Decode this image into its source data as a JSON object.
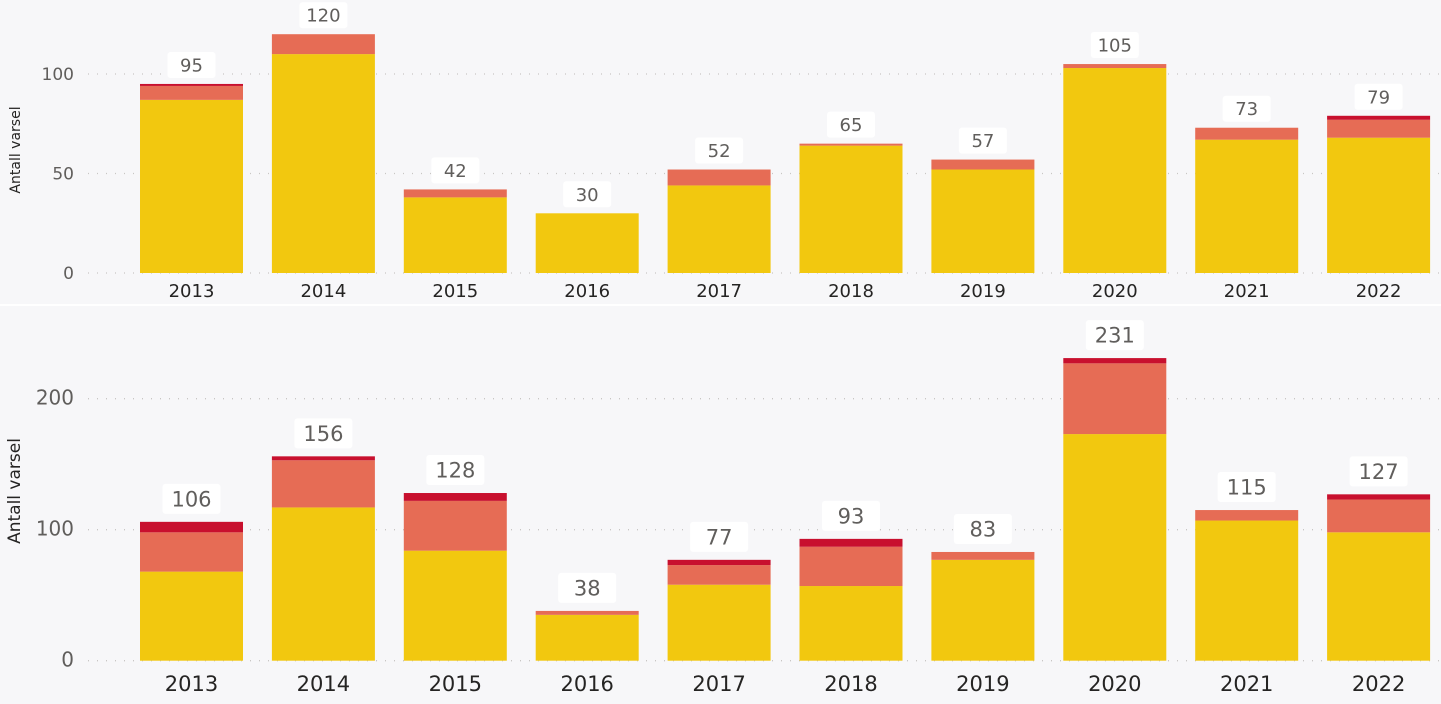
{
  "colors": {
    "yellow": "#f2c80f",
    "orange": "#e66c55",
    "crimson": "#c8102e",
    "background": "#f7f7f9"
  },
  "chart_data": [
    {
      "type": "bar",
      "stacked": true,
      "title": "",
      "xlabel": "",
      "ylabel": "Antall varsel",
      "categories": [
        "2013",
        "2014",
        "2015",
        "2016",
        "2017",
        "2018",
        "2019",
        "2020",
        "2021",
        "2022"
      ],
      "yticks": [
        0,
        50,
        100
      ],
      "ylim": [
        0,
        120
      ],
      "grid": true,
      "legend": "none",
      "series": [
        {
          "name": "yellow",
          "color": "#f2c80f",
          "values": [
            87,
            110,
            38,
            30,
            44,
            64,
            52,
            103,
            67,
            68
          ]
        },
        {
          "name": "orange",
          "color": "#e66c55",
          "values": [
            7,
            10,
            4,
            0,
            8,
            1,
            5,
            2,
            6,
            9
          ]
        },
        {
          "name": "crimson",
          "color": "#c8102e",
          "values": [
            1,
            0,
            0,
            0,
            0,
            0,
            0,
            0,
            0,
            2
          ]
        }
      ],
      "totals": [
        95,
        120,
        42,
        30,
        52,
        65,
        57,
        105,
        73,
        79
      ]
    },
    {
      "type": "bar",
      "stacked": true,
      "title": "",
      "xlabel": "",
      "ylabel": "Antall varsel",
      "categories": [
        "2013",
        "2014",
        "2015",
        "2016",
        "2017",
        "2018",
        "2019",
        "2020",
        "2021",
        "2022"
      ],
      "yticks": [
        0,
        100,
        200
      ],
      "ylim": [
        0,
        231
      ],
      "grid": true,
      "legend": "none",
      "series": [
        {
          "name": "yellow",
          "color": "#f2c80f",
          "values": [
            68,
            117,
            84,
            35,
            58,
            57,
            77,
            173,
            107,
            98
          ]
        },
        {
          "name": "orange",
          "color": "#e66c55",
          "values": [
            30,
            36,
            38,
            3,
            15,
            30,
            6,
            54,
            8,
            25
          ]
        },
        {
          "name": "crimson",
          "color": "#c8102e",
          "values": [
            8,
            3,
            6,
            0,
            4,
            6,
            0,
            4,
            0,
            4
          ]
        }
      ],
      "totals": [
        106,
        156,
        128,
        38,
        77,
        93,
        83,
        231,
        115,
        127
      ]
    }
  ]
}
